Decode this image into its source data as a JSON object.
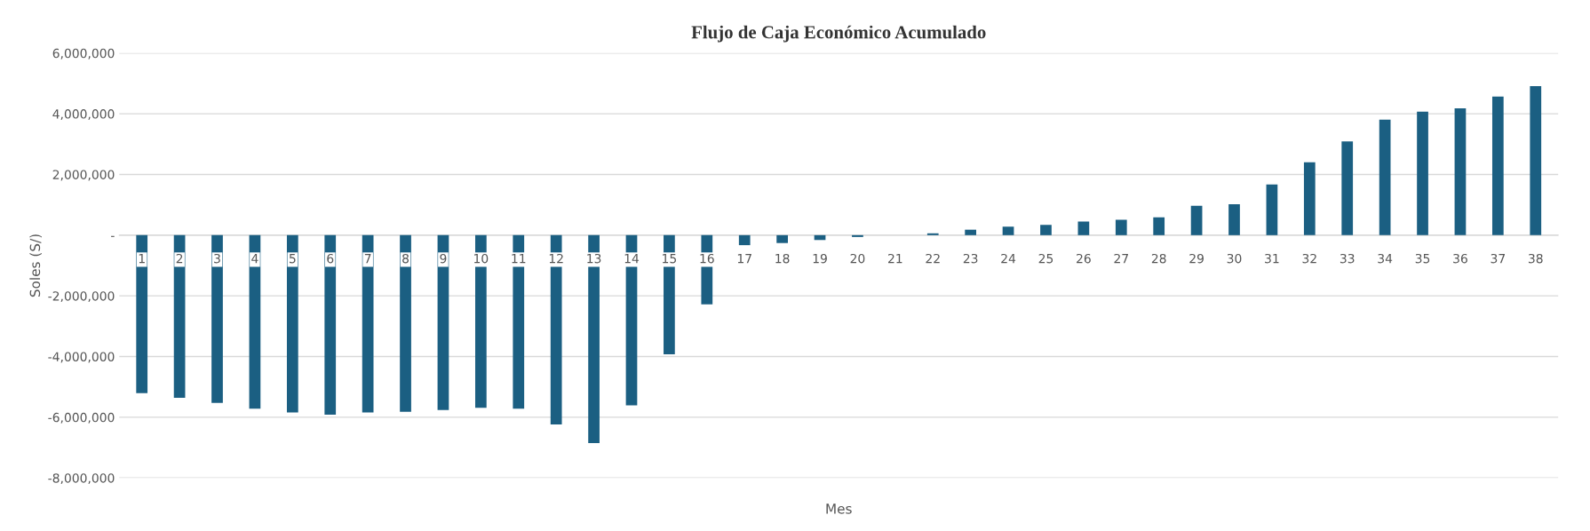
{
  "chart_data": {
    "type": "bar",
    "title": "Flujo de Caja Económico Acumulado",
    "xlabel": "Mes",
    "ylabel": "Soles (S/)",
    "categories": [
      "1",
      "2",
      "3",
      "4",
      "5",
      "6",
      "7",
      "8",
      "9",
      "10",
      "11",
      "12",
      "13",
      "14",
      "15",
      "16",
      "17",
      "18",
      "19",
      "20",
      "21",
      "22",
      "23",
      "24",
      "25",
      "26",
      "27",
      "28",
      "29",
      "30",
      "31",
      "32",
      "33",
      "34",
      "35",
      "36",
      "37",
      "38"
    ],
    "values": [
      -5210000,
      -5360000,
      -5530000,
      -5720000,
      -5840000,
      -5920000,
      -5840000,
      -5820000,
      -5760000,
      -5690000,
      -5720000,
      -6240000,
      -6850000,
      -5610000,
      -3930000,
      -2280000,
      -330000,
      -260000,
      -160000,
      -60000,
      0,
      60000,
      180000,
      280000,
      340000,
      450000,
      510000,
      590000,
      970000,
      1020000,
      1670000,
      2400000,
      3090000,
      3810000,
      4070000,
      4180000,
      4570000,
      4910000
    ],
    "color": "#1b5f82",
    "ylim": [
      -8000000,
      6000000
    ],
    "yticks": [
      {
        "value": -8000000,
        "label": "-8,000,000"
      },
      {
        "value": -6000000,
        "label": "-6,000,000"
      },
      {
        "value": -4000000,
        "label": "-4,000,000"
      },
      {
        "value": -2000000,
        "label": "-2,000,000"
      },
      {
        "value": 0,
        "label": "-"
      },
      {
        "value": 2000000,
        "label": "2,000,000"
      },
      {
        "value": 4000000,
        "label": "4,000,000"
      },
      {
        "value": 6000000,
        "label": "6,000,000"
      }
    ],
    "grid": "y",
    "legend": false
  }
}
